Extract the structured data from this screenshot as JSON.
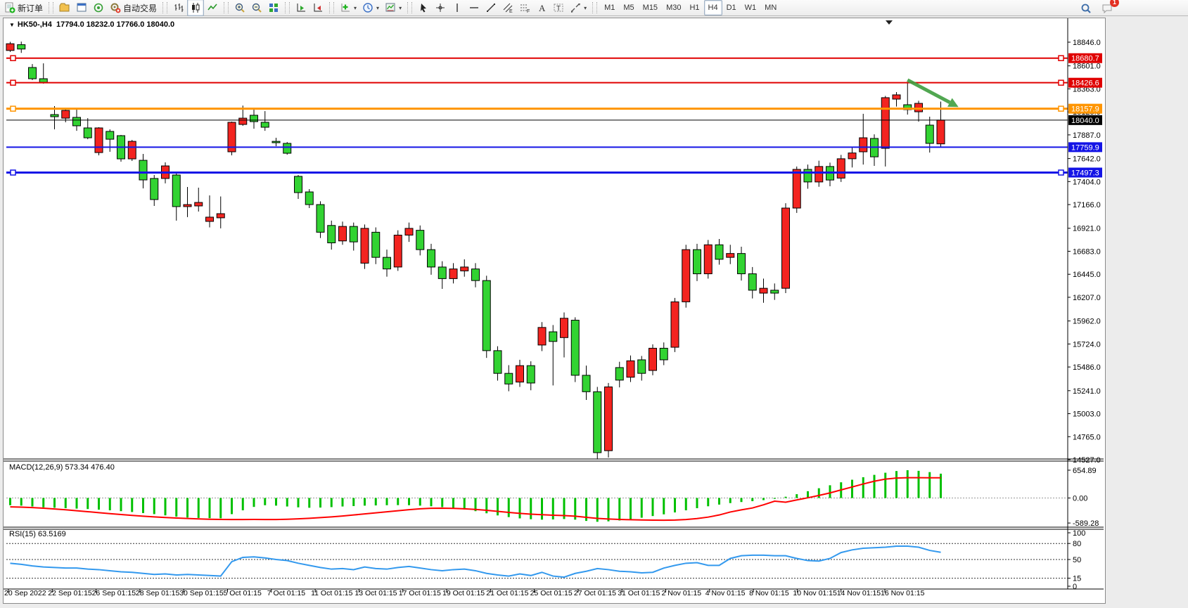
{
  "toolbar": {
    "groups": [
      {
        "items": [
          {
            "name": "new-order-button",
            "icon": "neworder",
            "label": "新订单"
          }
        ]
      },
      {
        "items": [
          {
            "name": "chart-profile-button",
            "icon": "profile"
          },
          {
            "name": "window-button",
            "icon": "window"
          },
          {
            "name": "signal-button",
            "icon": "signal"
          },
          {
            "name": "autotrade-button",
            "icon": "autotrade",
            "label": "自动交易"
          }
        ]
      },
      {
        "items": [
          {
            "name": "bar-chart-button",
            "icon": "bars"
          },
          {
            "name": "candlestick-chart-button",
            "icon": "candles",
            "active": true
          },
          {
            "name": "line-chart-button",
            "icon": "line"
          }
        ]
      },
      {
        "items": [
          {
            "name": "zoom-in-button",
            "icon": "zoomin"
          },
          {
            "name": "zoom-out-button",
            "icon": "zoomout"
          },
          {
            "name": "tile-windows-button",
            "icon": "tile"
          }
        ]
      },
      {
        "items": [
          {
            "name": "auto-scroll-button",
            "icon": "autoscroll"
          },
          {
            "name": "chart-shift-button",
            "icon": "shift"
          }
        ]
      },
      {
        "items": [
          {
            "name": "indicators-button",
            "icon": "indicators",
            "caret": true
          },
          {
            "name": "periods-button",
            "icon": "periods",
            "caret": true
          },
          {
            "name": "templates-button",
            "icon": "templates",
            "caret": true
          }
        ]
      },
      {
        "items": [
          {
            "name": "cursor-button",
            "icon": "cursor"
          },
          {
            "name": "crosshair-button",
            "icon": "crosshair"
          },
          {
            "name": "vertical-line-button",
            "icon": "vline"
          },
          {
            "name": "horizontal-line-button",
            "icon": "hline"
          },
          {
            "name": "trendline-button",
            "icon": "trendline"
          },
          {
            "name": "equidistant-channel-button",
            "icon": "channel"
          },
          {
            "name": "fibonacci-button",
            "icon": "fibo"
          },
          {
            "name": "text-button",
            "icon": "text"
          },
          {
            "name": "text-label-button",
            "icon": "tlabel"
          },
          {
            "name": "arrows-button",
            "icon": "arrows",
            "caret": true
          }
        ]
      },
      {
        "timeframes": true,
        "items": [
          {
            "label": "M1"
          },
          {
            "label": "M5"
          },
          {
            "label": "M15"
          },
          {
            "label": "M30"
          },
          {
            "label": "H1"
          },
          {
            "label": "H4",
            "active": true
          },
          {
            "label": "D1"
          },
          {
            "label": "W1"
          },
          {
            "label": "MN"
          }
        ]
      }
    ],
    "right": [
      {
        "name": "search-button",
        "icon": "search"
      },
      {
        "name": "notifications-button",
        "icon": "chat",
        "badge": "1"
      }
    ]
  },
  "chart": {
    "symbol": "HK50-,H4",
    "ohlc_text": "17794.0 18232.0 17766.0 18040.0",
    "shift_marker": "▼"
  },
  "indicators": {
    "macd": {
      "name": "MACD(12,26,9)",
      "values": "573.34 476.40",
      "axis_labels": [
        "654.89",
        "0.00",
        "-589.28"
      ]
    },
    "rsi": {
      "name": "RSI(15)",
      "values": "63.5169",
      "axis_labels": [
        "100",
        "80",
        "50",
        "15",
        "0"
      ],
      "level_lines": [
        80,
        50,
        15
      ]
    }
  },
  "chart_data": [
    {
      "type": "candlestick",
      "title": "HK50-,H4",
      "timeframe": "H4",
      "color_convention": "red=bullish(up), green=bearish(down)",
      "colors": {
        "up": "#f32420",
        "down": "#32d332",
        "wick": "#000000"
      },
      "ylim": [
        14527.0,
        18846.0
      ],
      "y_ticks": [
        "18846.0",
        "18601.0",
        "18363.0",
        "18125.0",
        "17887.0",
        "17642.0",
        "17404.0",
        "17166.0",
        "16921.0",
        "16683.0",
        "16445.0",
        "16207.0",
        "15962.0",
        "15724.0",
        "15486.0",
        "15241.0",
        "15003.0",
        "14765.0",
        "14527.0"
      ],
      "x_labels": [
        "20 Sep 2022",
        "22 Sep 01:15",
        "26 Sep 01:15",
        "28 Sep 01:15",
        "30 Sep 01:15",
        "5 Oct 01:15",
        "7 Oct 01:15",
        "11 Oct 01:15",
        "13 Oct 01:15",
        "17 Oct 01:15",
        "19 Oct 01:15",
        "21 Oct 01:15",
        "25 Oct 01:15",
        "27 Oct 01:15",
        "31 Oct 01:15",
        "2 Nov 01:15",
        "4 Nov 01:15",
        "8 Nov 01:15",
        "10 Nov 01:15",
        "14 Nov 01:15",
        "16 Nov 01:15"
      ],
      "levels": [
        {
          "label": "18680.7",
          "price": 18680.7,
          "color": "#e00000",
          "width": 2,
          "handles": true
        },
        {
          "label": "18426.6",
          "price": 18426.6,
          "color": "#e00000",
          "width": 2,
          "handles": true
        },
        {
          "label": "18157.9",
          "price": 18157.9,
          "color": "#ff9500",
          "width": 3,
          "handles": true
        },
        {
          "label": "18040.0",
          "price": 18040.0,
          "color": "#000000",
          "width": 1,
          "handles": false,
          "note": "current price"
        },
        {
          "label": "17759.9",
          "price": 17759.9,
          "color": "#1414e6",
          "width": 2,
          "handles": false
        },
        {
          "label": "17497.3",
          "price": 17497.3,
          "color": "#1414e6",
          "width": 3,
          "handles": true
        }
      ],
      "annotation": {
        "type": "arrow",
        "color": "#3f9e3f",
        "from_bar": 81,
        "from_price": 18455,
        "to_bar": 85.6,
        "to_price": 18175
      },
      "ohlc": [
        [
          18760,
          18850,
          18745,
          18830
        ],
        [
          18820,
          18852,
          18735,
          18775
        ],
        [
          18584,
          18620,
          18453,
          18468
        ],
        [
          18468,
          18627,
          18417,
          18430
        ],
        [
          18097,
          18184,
          17944,
          18075
        ],
        [
          18060,
          18157,
          18017,
          18140
        ],
        [
          18068,
          18148,
          17929,
          17981
        ],
        [
          17959,
          18060,
          17842,
          17857
        ],
        [
          17704,
          17966,
          17675,
          17959
        ],
        [
          17923,
          17944,
          17712,
          17842
        ],
        [
          17879,
          17886,
          17610,
          17639
        ],
        [
          17639,
          17835,
          17617,
          17820
        ],
        [
          17624,
          17690,
          17334,
          17421
        ],
        [
          17436,
          17472,
          17152,
          17218
        ],
        [
          17436,
          17603,
          17385,
          17566
        ],
        [
          17472,
          17508,
          17000,
          17145
        ],
        [
          17145,
          17348,
          17036,
          17166
        ],
        [
          17152,
          17341,
          17094,
          17188
        ],
        [
          16992,
          17261,
          16930,
          17036
        ],
        [
          17029,
          17250,
          16920,
          17072
        ],
        [
          17712,
          18024,
          17675,
          18017
        ],
        [
          17995,
          18190,
          17981,
          18060
        ],
        [
          18090,
          18148,
          17951,
          18024
        ],
        [
          18017,
          18133,
          17929,
          17966
        ],
        [
          17820,
          17857,
          17770,
          17806
        ],
        [
          17799,
          17813,
          17682,
          17697
        ],
        [
          17458,
          17472,
          17225,
          17290
        ],
        [
          17297,
          17326,
          17130,
          17166
        ],
        [
          17166,
          17200,
          16820,
          16880
        ],
        [
          16950,
          17000,
          16700,
          16770
        ],
        [
          16790,
          16990,
          16750,
          16940
        ],
        [
          16940,
          16980,
          16690,
          16780
        ],
        [
          16560,
          16960,
          16500,
          16920
        ],
        [
          16880,
          16930,
          16550,
          16620
        ],
        [
          16620,
          16700,
          16420,
          16500
        ],
        [
          16520,
          16900,
          16480,
          16850
        ],
        [
          16850,
          16980,
          16780,
          16920
        ],
        [
          16900,
          16950,
          16640,
          16700
        ],
        [
          16700,
          16760,
          16440,
          16520
        ],
        [
          16520,
          16580,
          16294,
          16400
        ],
        [
          16400,
          16560,
          16350,
          16500
        ],
        [
          16480,
          16600,
          16420,
          16520
        ],
        [
          16500,
          16560,
          16310,
          16380
        ],
        [
          16380,
          16430,
          15580,
          15655
        ],
        [
          15655,
          15700,
          15345,
          15420
        ],
        [
          15420,
          15505,
          15235,
          15310
        ],
        [
          15330,
          15560,
          15280,
          15500
        ],
        [
          15500,
          15545,
          15245,
          15320
        ],
        [
          15713,
          15950,
          15650,
          15895
        ],
        [
          15850,
          15920,
          15295,
          15750
        ],
        [
          15790,
          16050,
          15585,
          15990
        ],
        [
          15970,
          16000,
          15330,
          15400
        ],
        [
          15400,
          15500,
          15145,
          15230
        ],
        [
          15230,
          15280,
          14530,
          14600
        ],
        [
          14620,
          15320,
          14550,
          15280
        ],
        [
          15480,
          15540,
          15275,
          15350
        ],
        [
          15380,
          15605,
          15330,
          15550
        ],
        [
          15560,
          15600,
          15345,
          15420
        ],
        [
          15450,
          15720,
          15400,
          15680
        ],
        [
          15680,
          15740,
          15505,
          15560
        ],
        [
          15690,
          16200,
          15640,
          16160
        ],
        [
          16160,
          16750,
          16100,
          16700
        ],
        [
          16700,
          16760,
          16375,
          16450
        ],
        [
          16450,
          16800,
          16400,
          16750
        ],
        [
          16750,
          16810,
          16545,
          16600
        ],
        [
          16620,
          16750,
          16550,
          16660
        ],
        [
          16660,
          16730,
          16380,
          16450
        ],
        [
          16450,
          16520,
          16195,
          16280
        ],
        [
          16250,
          16400,
          16150,
          16300
        ],
        [
          16280,
          16350,
          16180,
          16250
        ],
        [
          16300,
          17180,
          16250,
          17130
        ],
        [
          17130,
          17560,
          17080,
          17530
        ],
        [
          17530,
          17580,
          17330,
          17400
        ],
        [
          17400,
          17620,
          17350,
          17560
        ],
        [
          17560,
          17600,
          17355,
          17420
        ],
        [
          17440,
          17680,
          17400,
          17640
        ],
        [
          17640,
          17760,
          17550,
          17700
        ],
        [
          17712,
          18105,
          17580,
          17857
        ],
        [
          17850,
          17893,
          17566,
          17660
        ],
        [
          17748,
          18290,
          17560,
          18272
        ],
        [
          18257,
          18330,
          18180,
          18301
        ],
        [
          18199,
          18424,
          18097,
          18148
        ],
        [
          18126,
          18240,
          18024,
          18213
        ],
        [
          17988,
          18075,
          17704,
          17799
        ],
        [
          17794,
          18232,
          17766,
          18040
        ]
      ]
    },
    {
      "type": "bar",
      "name": "MACD(12,26,9)",
      "current": "573.34 476.40",
      "axis": [
        654.89,
        0.0,
        -589.28
      ],
      "histogram_color": "#00c000",
      "signal_color": "#ff0000",
      "values": [
        -170,
        -180,
        -200,
        -220,
        -230,
        -240,
        -250,
        -260,
        -275,
        -290,
        -310,
        -330,
        -355,
        -380,
        -410,
        -440,
        -460,
        -470,
        -475,
        -478,
        -380,
        -290,
        -210,
        -170,
        -180,
        -200,
        -220,
        -230,
        -225,
        -215,
        -200,
        -190,
        -180,
        -175,
        -170,
        -168,
        -170,
        -180,
        -195,
        -215,
        -240,
        -270,
        -310,
        -360,
        -410,
        -450,
        -480,
        -500,
        -510,
        -505,
        -495,
        -510,
        -540,
        -560,
        -550,
        -530,
        -500,
        -465,
        -425,
        -385,
        -340,
        -290,
        -240,
        -195,
        -155,
        -120,
        -95,
        -75,
        -50,
        -20,
        30,
        90,
        160,
        230,
        300,
        370,
        430,
        490,
        545,
        595,
        635,
        655,
        640,
        610,
        573
      ],
      "signal": [
        -208,
        -215,
        -225,
        -240,
        -258,
        -278,
        -300,
        -322,
        -345,
        -368,
        -390,
        -410,
        -428,
        -445,
        -460,
        -472,
        -482,
        -492,
        -500,
        -505,
        -507,
        -507,
        -505,
        -507,
        -507,
        -500,
        -490,
        -478,
        -462,
        -444,
        -424,
        -400,
        -375,
        -350,
        -325,
        -300,
        -275,
        -255,
        -243,
        -241,
        -245,
        -255,
        -270,
        -290,
        -315,
        -340,
        -362,
        -380,
        -394,
        -405,
        -413,
        -428,
        -455,
        -480,
        -495,
        -505,
        -512,
        -518,
        -522,
        -524,
        -520,
        -508,
        -485,
        -450,
        -400,
        -330,
        -280,
        -235,
        -160,
        -75,
        -100,
        -45,
        5,
        60,
        120,
        190,
        260,
        330,
        395,
        445,
        470,
        478,
        478,
        477,
        476
      ]
    },
    {
      "type": "line",
      "name": "RSI(15)",
      "current": "63.5169",
      "color": "#3399ee",
      "ylim": [
        0,
        100
      ],
      "level_lines": [
        80,
        50,
        15
      ],
      "values": [
        43,
        41,
        38,
        36,
        35,
        34,
        34,
        32,
        31,
        29,
        27,
        26,
        24,
        22,
        23,
        21,
        22,
        21,
        20,
        19,
        46,
        54,
        55,
        53,
        50,
        48,
        43,
        39,
        35,
        32,
        33,
        31,
        36,
        33,
        32,
        35,
        37,
        34,
        31,
        29,
        31,
        32,
        29,
        24,
        21,
        19,
        23,
        20,
        26,
        19,
        17,
        24,
        28,
        33,
        31,
        28,
        27,
        25,
        26,
        34,
        39,
        43,
        44,
        39,
        39,
        52,
        57,
        58,
        58,
        57,
        57,
        52,
        48,
        47,
        52,
        63,
        68,
        71,
        72,
        73,
        75,
        75,
        73,
        67,
        63.5
      ]
    }
  ]
}
